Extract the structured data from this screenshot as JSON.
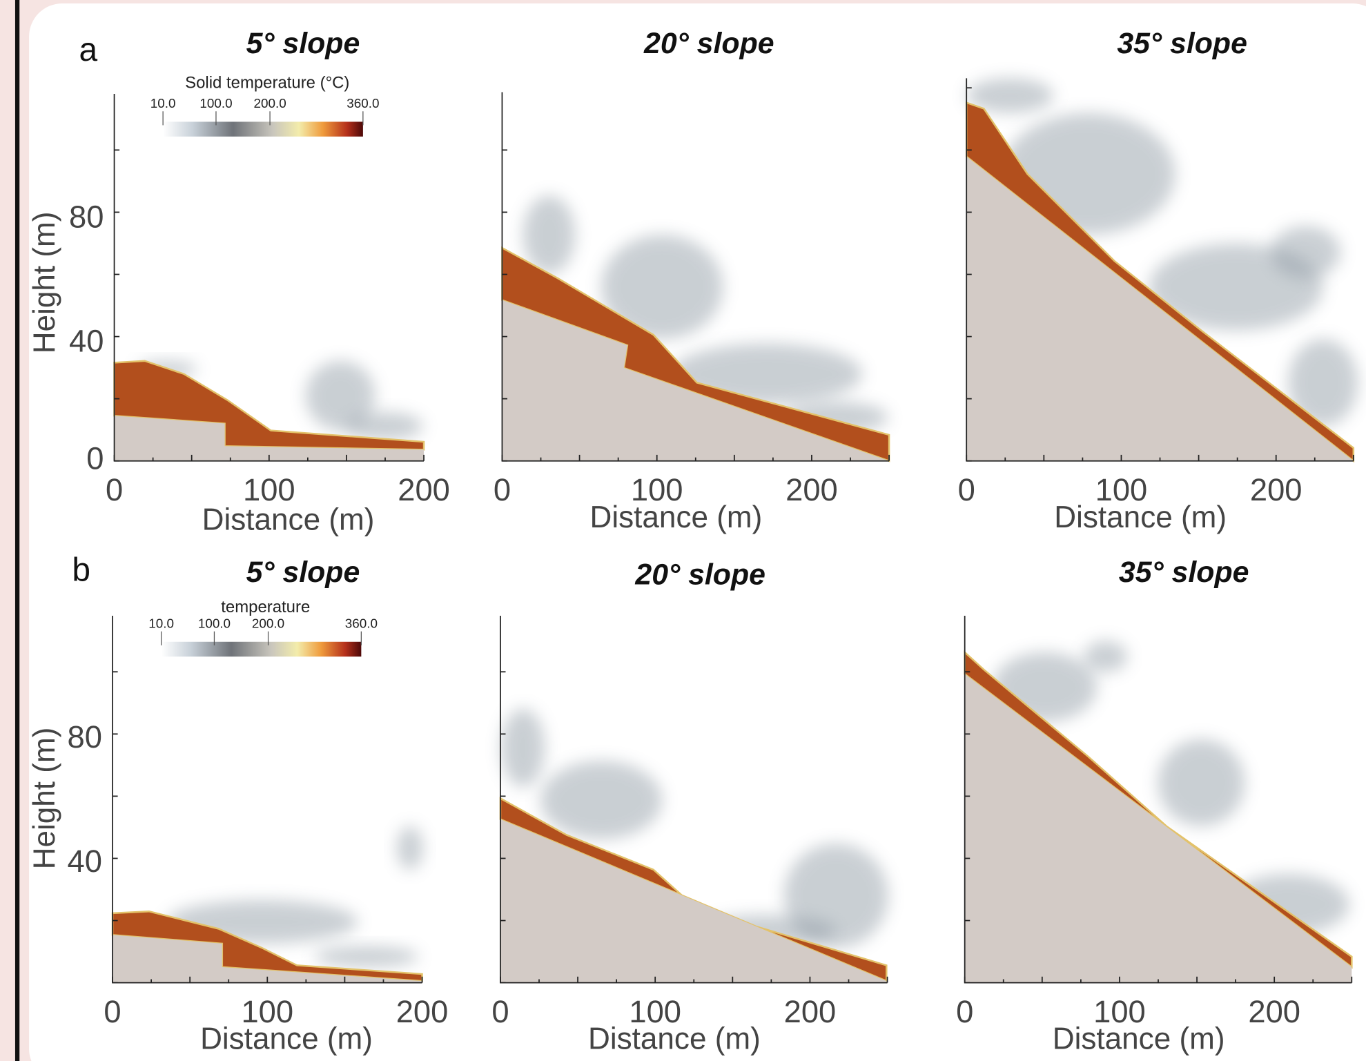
{
  "panels": [
    {
      "label": "a",
      "colorbar_title": "Solid temperature (°C)",
      "colorbar_ticks": [
        "10.0",
        "100.0",
        "200.0",
        "360.0"
      ],
      "plots": [
        {
          "title": "5° slope",
          "y_label": "Height (m)",
          "y_ticks": [
            "0",
            "40",
            "80"
          ],
          "x_label": "Distance (m)",
          "x_ticks": [
            "0",
            "100",
            "200"
          ]
        },
        {
          "title": "20° slope",
          "x_label": "Distance (m)",
          "x_ticks": [
            "0",
            "100",
            "200"
          ]
        },
        {
          "title": "35° slope",
          "x_label": "Distance (m)",
          "x_ticks": [
            "0",
            "100",
            "200"
          ]
        }
      ]
    },
    {
      "label": "b",
      "colorbar_title": "temperature",
      "colorbar_ticks": [
        "10.0",
        "100.0",
        "200.0",
        "360.0"
      ],
      "plots": [
        {
          "title": "5° slope",
          "y_label": "Height (m)",
          "y_ticks": [
            "40",
            "80"
          ],
          "x_label": "Distance (m)",
          "x_ticks": [
            "0",
            "100",
            "200"
          ]
        },
        {
          "title": "20° slope",
          "x_label": "Distance (m)",
          "x_ticks": [
            "0",
            "100",
            "200"
          ]
        },
        {
          "title": "35° slope",
          "x_label": "Distance (m)",
          "x_ticks": [
            "0",
            "100",
            "200"
          ]
        }
      ]
    }
  ]
}
